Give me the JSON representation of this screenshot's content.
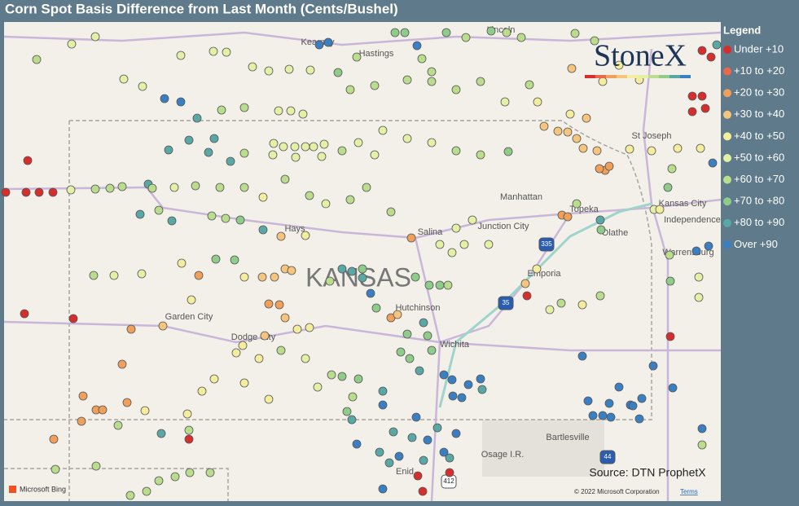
{
  "title": "Corn Spot Basis Difference from Last Month (Cents/Bushel)",
  "legend": {
    "title": "Legend",
    "items": [
      {
        "label": "Under +10",
        "color": "#d62d2d"
      },
      {
        "label": "+10 to +20",
        "color": "#e8694a"
      },
      {
        "label": "+20 to +30",
        "color": "#f0a05a"
      },
      {
        "label": "+30 to +40",
        "color": "#f5c57e"
      },
      {
        "label": "+40 to +50",
        "color": "#f5ed9e"
      },
      {
        "label": "+50 to +60",
        "color": "#e3f0a6"
      },
      {
        "label": "+60 to +70",
        "color": "#b9dd8c"
      },
      {
        "label": "+70 to +80",
        "color": "#8fcc8a"
      },
      {
        "label": "+80 to +90",
        "color": "#5aa8a6"
      },
      {
        "label": "Over +90",
        "color": "#3a7fc1"
      }
    ]
  },
  "logo": "StoneX",
  "places": [
    "Kearney",
    "Hastings",
    "Lincoln",
    "St Joseph",
    "Manhattan",
    "Topeka",
    "Kansas City",
    "Independence",
    "Hays",
    "Salina",
    "Junction City",
    "Olathe",
    "Warrensburg",
    "KANSAS",
    "Emporia",
    "Garden City",
    "Hutchinson",
    "Dodge City",
    "Wichita",
    "Bartlesville",
    "Osage I.R.",
    "Enid"
  ],
  "shields": [
    "35",
    "335",
    "44",
    "412"
  ],
  "source": "Source: DTN ProphetX",
  "attribution": {
    "provider": "Microsoft Bing",
    "copyright": "© 2022 Microsoft Corporation",
    "terms": "Terms"
  }
}
